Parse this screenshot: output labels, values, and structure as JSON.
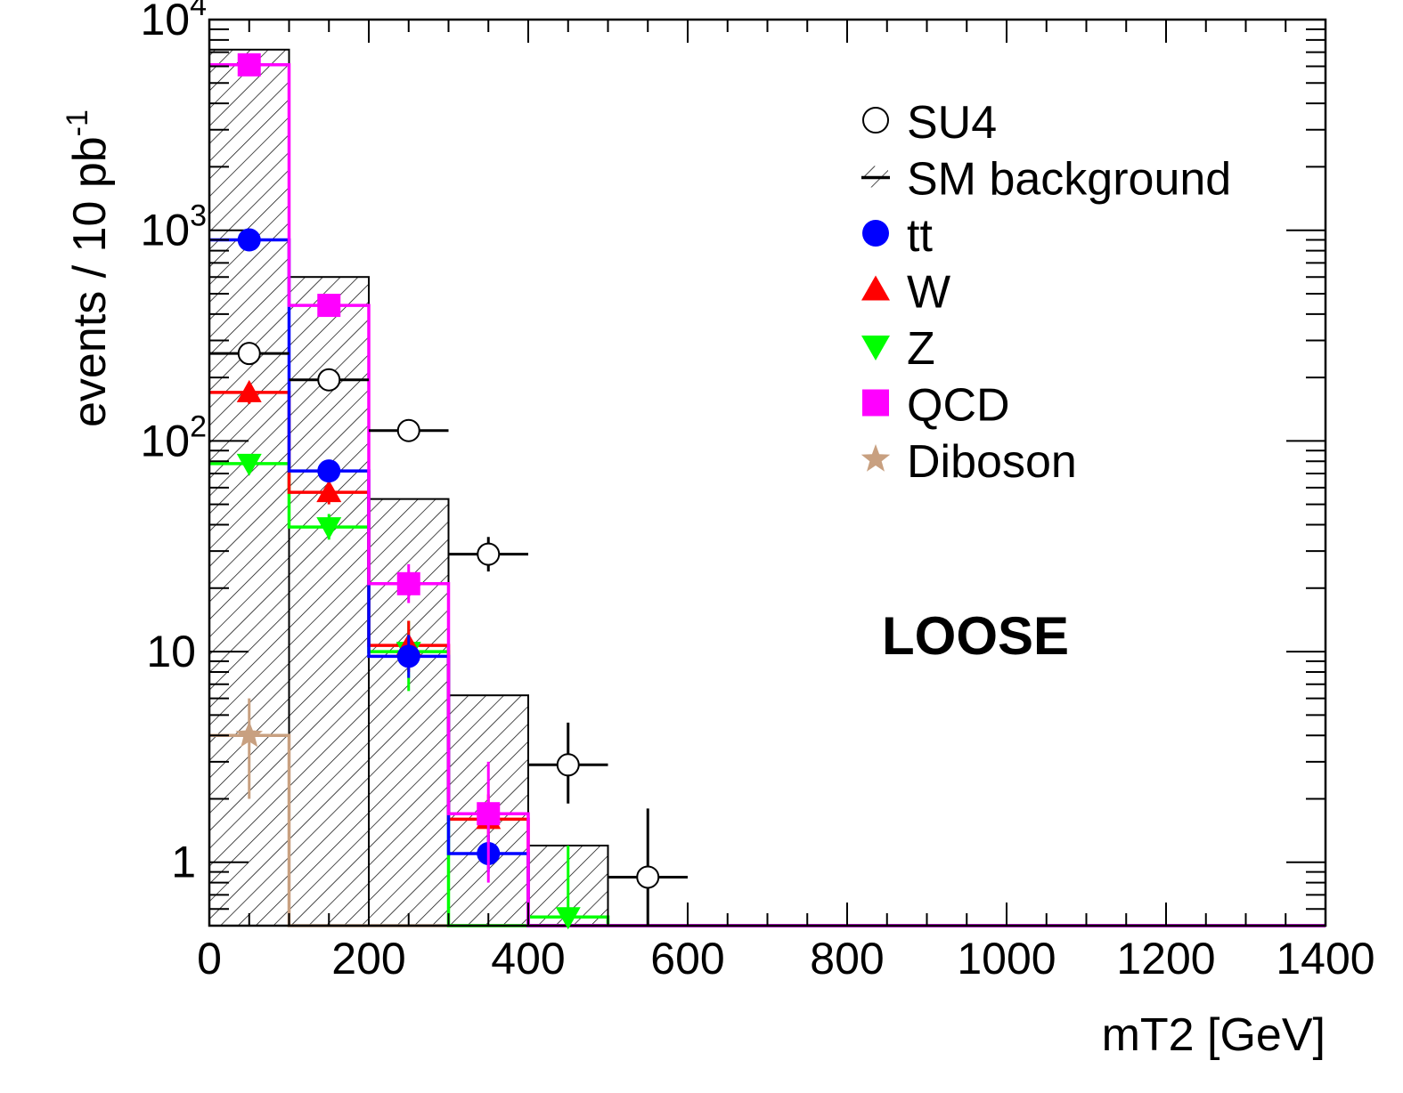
{
  "chart_data": {
    "type": "histogram",
    "xlabel": "mT2 [GeV]",
    "ylabel": "events / 10 pb",
    "ylabel_superscript": "-1",
    "xlim": [
      0,
      1400
    ],
    "ylim": [
      0.5,
      10000
    ],
    "yscale": "log",
    "x_ticks": [
      "0",
      "200",
      "400",
      "600",
      "800",
      "1000",
      "1200",
      "1400"
    ],
    "y_ticks": [
      {
        "value": 1,
        "base": "1",
        "exp": ""
      },
      {
        "value": 10,
        "base": "10",
        "exp": ""
      },
      {
        "value": 100,
        "base": "10",
        "exp": "2"
      },
      {
        "value": 1000,
        "base": "10",
        "exp": "3"
      },
      {
        "value": 10000,
        "base": "10",
        "exp": "4"
      }
    ],
    "annotation": "LOOSE",
    "legend_position": "top-right",
    "bin_edges": [
      0,
      100,
      200,
      300,
      400,
      500,
      600
    ],
    "series": [
      {
        "name": "SU4",
        "key": "su4",
        "style": "points",
        "marker": "open-circle",
        "color": "#000000",
        "values": [
          260,
          195,
          112,
          29,
          2.9,
          0.85
        ],
        "err_lo": [
          240,
          180,
          103,
          24,
          1.9,
          0.45
        ],
        "err_hi": [
          280,
          210,
          121,
          35,
          4.6,
          1.8
        ]
      },
      {
        "name": "SM background",
        "key": "sm",
        "style": "hatched-hist",
        "color": "#000000",
        "values": [
          7200,
          600,
          53,
          6.2,
          1.2,
          0
        ]
      },
      {
        "name": "tt",
        "key": "tt",
        "style": "hist-points",
        "marker": "circle",
        "color": "#0000ff",
        "values": [
          900,
          72,
          9.5,
          1.1,
          0,
          0
        ],
        "err_lo": [
          860,
          68,
          7.5,
          0.9,
          0,
          0
        ],
        "err_hi": [
          940,
          76,
          12,
          1.35,
          0,
          0
        ]
      },
      {
        "name": "W",
        "key": "w",
        "style": "hist-points",
        "marker": "triangle-up",
        "color": "#ff0000",
        "values": [
          170,
          57,
          10.7,
          1.6,
          0,
          0
        ],
        "err_lo": [
          150,
          50,
          8,
          1.2,
          0,
          0
        ],
        "err_hi": [
          190,
          64,
          14,
          2.1,
          0,
          0
        ]
      },
      {
        "name": "Z",
        "key": "z",
        "style": "hist-points",
        "marker": "triangle-down",
        "color": "#00ff00",
        "values": [
          78,
          39,
          10,
          0,
          0.55,
          0
        ],
        "err_lo": [
          72,
          34,
          6.5,
          0,
          0.5,
          0
        ],
        "err_hi": [
          84,
          45,
          14,
          0,
          1.2,
          0
        ]
      },
      {
        "name": "QCD",
        "key": "qcd",
        "style": "hist-points",
        "marker": "square",
        "color": "#ff00ff",
        "values": [
          6100,
          440,
          21,
          1.7,
          0,
          0
        ],
        "err_lo": [
          5800,
          400,
          17,
          0.8,
          0,
          0
        ],
        "err_hi": [
          6400,
          480,
          26,
          3.0,
          0,
          0
        ]
      },
      {
        "name": "Diboson",
        "key": "diboson",
        "style": "hist-points",
        "marker": "star",
        "color": "#c8a080",
        "values": [
          4,
          0,
          0,
          0,
          0,
          0
        ],
        "err_lo": [
          2,
          0,
          0,
          0,
          0,
          0
        ],
        "err_hi": [
          6,
          0,
          0,
          0,
          0,
          0
        ]
      }
    ]
  }
}
